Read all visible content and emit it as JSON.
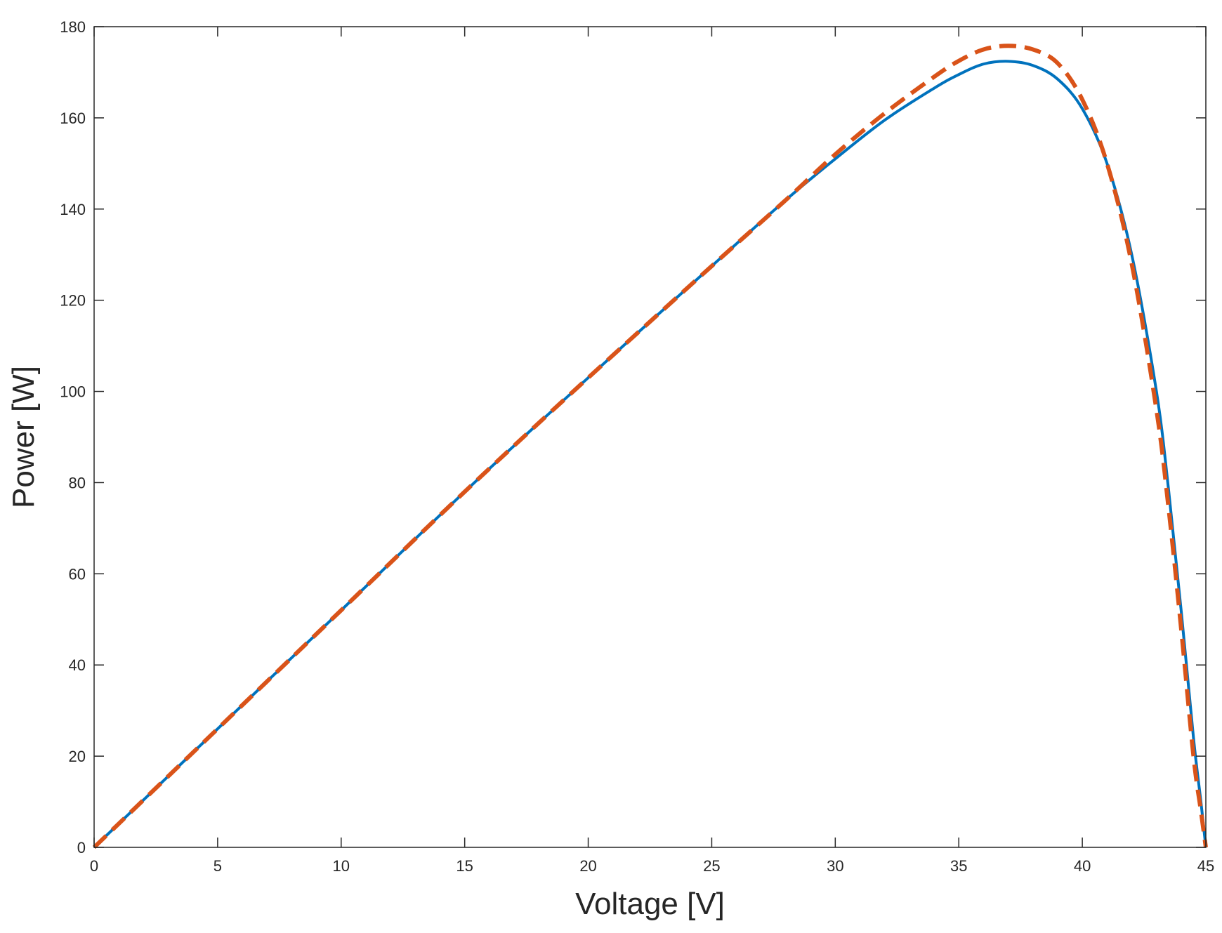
{
  "chart_data": {
    "type": "line",
    "title": "",
    "xlabel": "Voltage [V]",
    "ylabel": "Power [W]",
    "xlim": [
      0,
      45
    ],
    "ylim": [
      0,
      180
    ],
    "xticks": [
      0,
      5,
      10,
      15,
      20,
      25,
      30,
      35,
      40,
      45
    ],
    "yticks": [
      0,
      20,
      40,
      60,
      80,
      100,
      120,
      140,
      160,
      180
    ],
    "grid": false,
    "legend": "none",
    "series": [
      {
        "style": "solid",
        "color": "#0072bd",
        "x": [
          0,
          5,
          10,
          15,
          20,
          25,
          28,
          30,
          32,
          34,
          35,
          36,
          37,
          38,
          39,
          40,
          41,
          42,
          43,
          43.5,
          44,
          44.5,
          44.8,
          45
        ],
        "y": [
          0,
          26,
          52,
          78,
          103,
          127.5,
          142,
          151,
          159.5,
          166.5,
          169.5,
          171.8,
          172.4,
          171.5,
          168.5,
          162,
          150,
          130,
          100,
          78,
          52,
          24,
          10,
          0
        ]
      },
      {
        "style": "dashed",
        "color": "#d95319",
        "x": [
          0,
          5,
          10,
          15,
          20,
          25,
          28,
          30,
          32,
          34,
          35,
          36,
          37,
          38,
          39,
          40,
          41,
          42,
          43,
          43.5,
          44,
          44.5,
          44.8,
          45
        ],
        "y": [
          0,
          26,
          52,
          78,
          103,
          127.5,
          142,
          152,
          161,
          169,
          172.5,
          175,
          175.8,
          175,
          172,
          164,
          150,
          128,
          96,
          74,
          48,
          20,
          8,
          0
        ]
      }
    ]
  }
}
